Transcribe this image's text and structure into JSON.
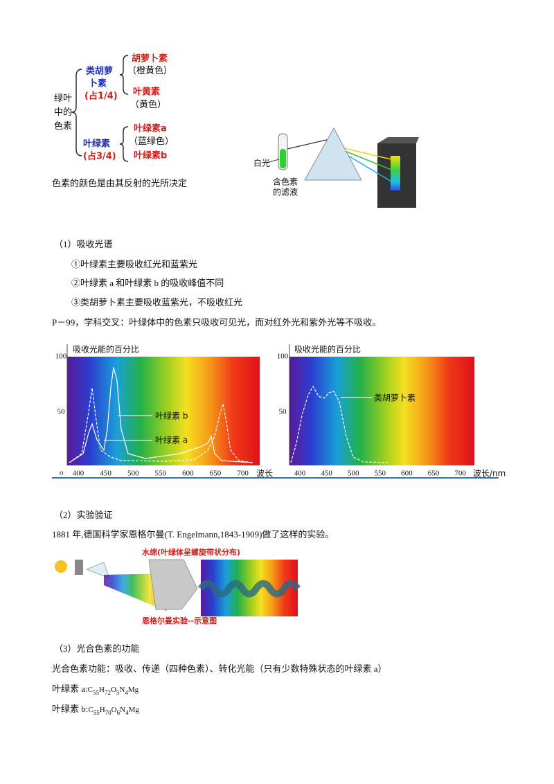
{
  "pigment_diagram": {
    "root": [
      "绿叶",
      "中的",
      "色素"
    ],
    "carotenoids": {
      "name_lines": [
        "类胡萝",
        "卜素"
      ],
      "share": "(占1/4)",
      "members": [
        {
          "name": "胡萝卜素",
          "color": "（橙黄色）"
        },
        {
          "name": "叶黄素",
          "color": "（黄色）"
        }
      ]
    },
    "chlorophylls": {
      "name": "叶绿素",
      "share": "(占3/4)",
      "members": [
        "叶绿素a",
        "叶绿素b"
      ],
      "color": "（蓝绿色）"
    },
    "note": "色素的颜色是由其反射的光所决定"
  },
  "prism_diagram": {
    "light": "白光",
    "filtrate": [
      "含色素",
      "的滤液"
    ]
  },
  "section1": {
    "heading": "（1）吸收光谱",
    "points": [
      "①叶绿素主要吸收红光和蓝紫光",
      "②叶绿素 a 和叶绿素 b 的吸收峰值不同",
      "③类胡萝卜素主要吸收蓝紫光，不吸收红光"
    ],
    "note": "P－99，学科交叉：叶绿体中的色素只吸收可见光，而对红外光和紫外光等不吸收。"
  },
  "absorption_charts": [
    {
      "title": "吸收光能的百分比",
      "y_labels": [
        100,
        50
      ],
      "origin": "o",
      "x_labels": [
        400,
        450,
        500,
        550,
        600,
        650,
        700
      ],
      "x_axis": "波长",
      "curve_labels": [
        "叶绿素 b",
        "叶绿素 a"
      ]
    },
    {
      "title": "吸收光能的百分比",
      "y_labels": [
        100,
        50
      ],
      "x_labels": [
        400,
        450,
        500,
        550,
        600,
        650,
        700
      ],
      "x_axis": "波长/nm",
      "curve_labels": [
        "类胡萝卜素"
      ]
    }
  ],
  "section2": {
    "heading": "（2）实验验证",
    "text": "1881 年,德国科学家恩格尔曼(T. Engelmann,1843-1909)做了这样的实验。",
    "figure_title": "水绵(叶绿体呈螺旋带状分布)",
    "figure_caption": "恩格尔曼实验--示意图"
  },
  "section3": {
    "heading": "（3）光合色素的功能",
    "text": "光合色素功能：吸收、传递（四种色素）、转化光能（只有少数特殊状态的叶绿素 a）",
    "formulas": [
      {
        "label": "叶绿素 a:",
        "parts": [
          "C",
          "55",
          "H",
          "72",
          "O",
          "5",
          "N",
          "4",
          "Mg"
        ]
      },
      {
        "label": "叶绿素 b:",
        "parts": [
          "C",
          "55",
          "H",
          "70",
          "O",
          "6",
          "N",
          "4",
          "Mg"
        ]
      }
    ]
  }
}
